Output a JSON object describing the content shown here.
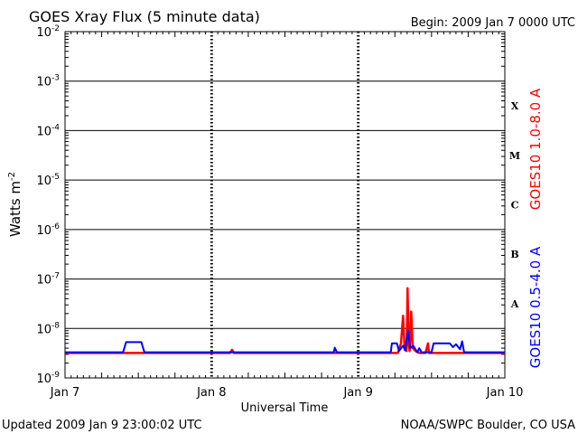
{
  "header": {
    "title": "GOES Xray Flux (5 minute data)",
    "begin": "Begin:  2009 Jan 7 0000 UTC"
  },
  "footer": {
    "updated": "Updated 2009 Jan  9 23:00:02 UTC",
    "credit": "NOAA/SWPC Boulder, CO USA"
  },
  "colors": {
    "long_band": "#ff0000",
    "short_band": "#0000ff",
    "axes": "#000000"
  },
  "chart_data": {
    "type": "line",
    "title": "GOES Xray Flux (5 minute data)",
    "xlabel": "Universal Time",
    "ylabel_base": "Watts m",
    "ylabel_exp": "-2",
    "yscale": "log",
    "ylim": [
      1e-09,
      0.01
    ],
    "xlim": [
      "2009-01-07 00:00",
      "2009-01-10 00:00"
    ],
    "x_ticks": [
      "Jan 7",
      "Jan 8",
      "Jan 9",
      "Jan 10"
    ],
    "y_ticks": [
      {
        "base": "10",
        "exp": "-9"
      },
      {
        "base": "10",
        "exp": "-8"
      },
      {
        "base": "10",
        "exp": "-7"
      },
      {
        "base": "10",
        "exp": "-6"
      },
      {
        "base": "10",
        "exp": "-5"
      },
      {
        "base": "10",
        "exp": "-4"
      },
      {
        "base": "10",
        "exp": "-3"
      },
      {
        "base": "10",
        "exp": "-2"
      }
    ],
    "flare_classes": [
      {
        "label": "A",
        "flux": 1e-08
      },
      {
        "label": "B",
        "flux": 1e-07
      },
      {
        "label": "C",
        "flux": 1e-06
      },
      {
        "label": "M",
        "flux": 1e-05
      },
      {
        "label": "X",
        "flux": 0.0001
      }
    ],
    "grid": true,
    "series": [
      {
        "name": "GOES10 1.0-8.0 A",
        "color": "#ff0000",
        "points": [
          [
            "2009-01-07 00:00",
            3.2e-09
          ],
          [
            "2009-01-08 03:00",
            3.2e-09
          ],
          [
            "2009-01-08 03:20",
            3.7e-09
          ],
          [
            "2009-01-08 03:40",
            3.2e-09
          ],
          [
            "2009-01-09 04:00",
            3.2e-09
          ],
          [
            "2009-01-09 06:30",
            3.2e-09
          ],
          [
            "2009-01-09 07:00",
            5e-09
          ],
          [
            "2009-01-09 07:20",
            1.8e-08
          ],
          [
            "2009-01-09 07:35",
            4e-09
          ],
          [
            "2009-01-09 07:55",
            3.5e-09
          ],
          [
            "2009-01-09 08:05",
            6.5e-08
          ],
          [
            "2009-01-09 08:15",
            5e-09
          ],
          [
            "2009-01-09 08:25",
            3.5e-09
          ],
          [
            "2009-01-09 08:40",
            2.2e-08
          ],
          [
            "2009-01-09 08:55",
            4e-09
          ],
          [
            "2009-01-09 09:30",
            3.4e-09
          ],
          [
            "2009-01-09 10:00",
            3.2e-09
          ],
          [
            "2009-01-09 11:00",
            3.2e-09
          ],
          [
            "2009-01-09 11:25",
            5e-09
          ],
          [
            "2009-01-09 11:35",
            3.2e-09
          ],
          [
            "2009-01-10 00:00",
            3.2e-09
          ]
        ]
      },
      {
        "name": "GOES10 0.5-4.0 A",
        "color": "#0000ff",
        "points": [
          [
            "2009-01-07 00:00",
            3.3e-09
          ],
          [
            "2009-01-07 09:30",
            3.3e-09
          ],
          [
            "2009-01-07 10:00",
            5.3e-09
          ],
          [
            "2009-01-07 12:30",
            5.3e-09
          ],
          [
            "2009-01-07 13:00",
            3.3e-09
          ],
          [
            "2009-01-08 20:00",
            3.3e-09
          ],
          [
            "2009-01-08 20:10",
            4.1e-09
          ],
          [
            "2009-01-08 20:30",
            3.3e-09
          ],
          [
            "2009-01-09 05:20",
            3.3e-09
          ],
          [
            "2009-01-09 05:30",
            5e-09
          ],
          [
            "2009-01-09 06:20",
            5e-09
          ],
          [
            "2009-01-09 06:40",
            3.5e-09
          ],
          [
            "2009-01-09 07:20",
            4.5e-09
          ],
          [
            "2009-01-09 07:40",
            3.6e-09
          ],
          [
            "2009-01-09 08:10",
            9e-09
          ],
          [
            "2009-01-09 08:30",
            4e-09
          ],
          [
            "2009-01-09 09:00",
            4.5e-09
          ],
          [
            "2009-01-09 09:40",
            3.3e-09
          ],
          [
            "2009-01-09 10:00",
            4e-09
          ],
          [
            "2009-01-09 10:20",
            3.3e-09
          ],
          [
            "2009-01-09 12:00",
            3.3e-09
          ],
          [
            "2009-01-09 12:20",
            5e-09
          ],
          [
            "2009-01-09 15:00",
            5e-09
          ],
          [
            "2009-01-09 15:30",
            4.2e-09
          ],
          [
            "2009-01-09 16:00",
            4.8e-09
          ],
          [
            "2009-01-09 16:40",
            3.8e-09
          ],
          [
            "2009-01-09 17:00",
            5.5e-09
          ],
          [
            "2009-01-09 17:20",
            3.3e-09
          ],
          [
            "2009-01-10 00:00",
            3.3e-09
          ]
        ]
      }
    ]
  }
}
